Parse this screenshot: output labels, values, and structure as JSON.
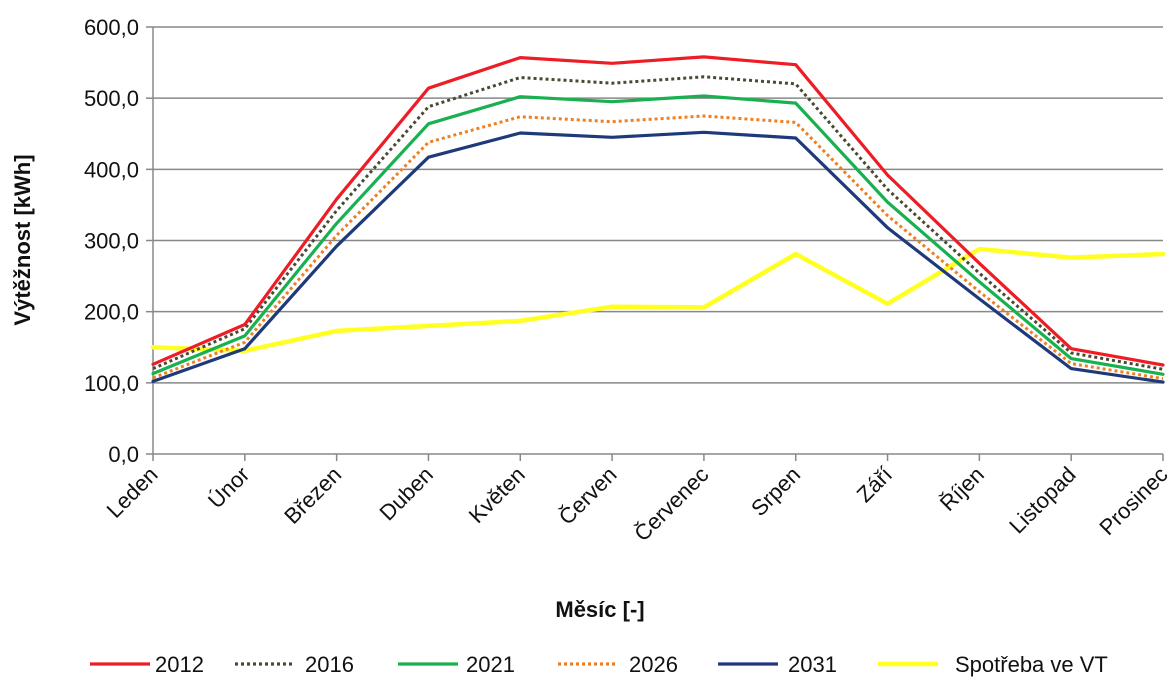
{
  "chart_data": {
    "type": "line",
    "title": "",
    "xlabel": "Měsíc [-]",
    "ylabel": "Výtěžnost [kWh]",
    "ylim": [
      0,
      600
    ],
    "y_ticks": [
      "0,0",
      "100,0",
      "200,0",
      "300,0",
      "400,0",
      "500,0",
      "600,0"
    ],
    "grid": "horizontal",
    "legend_position": "bottom",
    "categories": [
      "Leden",
      "Únor",
      "Březen",
      "Duben",
      "Květen",
      "Červen",
      "Červenec",
      "Srpen",
      "Září",
      "Říjen",
      "Listopad",
      "Prosinec"
    ],
    "series": [
      {
        "name": "2012",
        "color": "#ee1c25",
        "style": "solid",
        "values": [
          126,
          182,
          358,
          514,
          557,
          549,
          558,
          547,
          392,
          268,
          148,
          125
        ]
      },
      {
        "name": "2016",
        "color": "#4a4a32",
        "style": "dotted",
        "values": [
          120,
          176,
          342,
          488,
          529,
          521,
          530,
          520,
          372,
          254,
          142,
          119
        ]
      },
      {
        "name": "2021",
        "color": "#19b050",
        "style": "solid",
        "values": [
          113,
          166,
          324,
          464,
          502,
          495,
          503,
          493,
          354,
          242,
          134,
          112
        ]
      },
      {
        "name": "2026",
        "color": "#f07f22",
        "style": "dotted",
        "values": [
          107,
          157,
          307,
          438,
          474,
          467,
          475,
          466,
          335,
          228,
          127,
          106
        ]
      },
      {
        "name": "2031",
        "color": "#1f3a7a",
        "style": "solid",
        "values": [
          102,
          148,
          292,
          417,
          451,
          445,
          452,
          444,
          318,
          218,
          120,
          101
        ]
      },
      {
        "name": "Spotřeba ve VT",
        "color": "#ffff22",
        "style": "solid",
        "values": [
          150,
          145,
          173,
          180,
          187,
          207,
          206,
          281,
          211,
          288,
          276,
          281
        ]
      }
    ]
  }
}
